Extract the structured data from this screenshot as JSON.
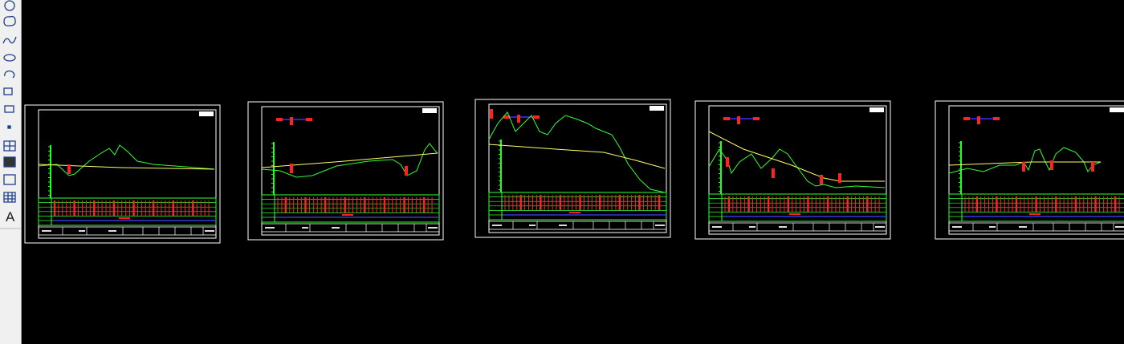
{
  "toolbar": {
    "text_tool": "A"
  }
}
